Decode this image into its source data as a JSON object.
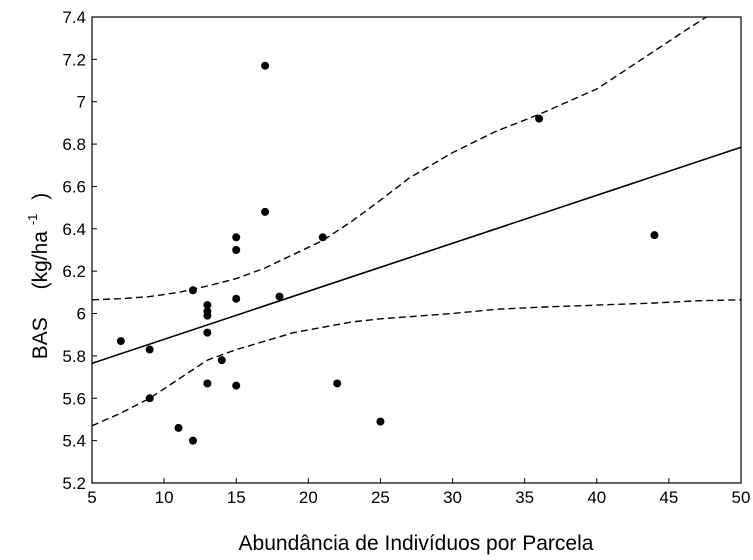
{
  "chart_data": {
    "type": "scatter",
    "title": "",
    "xlabel": "Abundância de Indivíduos por Parcela",
    "ylabel": {
      "main": "BAS",
      "unit_prefix": "(kg/ha",
      "unit_sup": "-1",
      "unit_suffix": ")"
    },
    "xlim": [
      5,
      50
    ],
    "ylim": [
      5.2,
      7.4
    ],
    "xticks": [
      "5",
      "10",
      "15",
      "20",
      "25",
      "30",
      "35",
      "40",
      "45",
      "50"
    ],
    "yticks": [
      "5.2",
      "5.4",
      "5.6",
      "5.8",
      "6",
      "6.2",
      "6.4",
      "6.6",
      "6.8",
      "7",
      "7.2",
      "7.4"
    ],
    "grid": false,
    "points": [
      {
        "x": 7,
        "y": 5.87
      },
      {
        "x": 9,
        "y": 5.83
      },
      {
        "x": 9,
        "y": 5.6
      },
      {
        "x": 11,
        "y": 5.46
      },
      {
        "x": 12,
        "y": 6.11
      },
      {
        "x": 12,
        "y": 5.4
      },
      {
        "x": 13,
        "y": 6.04
      },
      {
        "x": 13,
        "y": 6.01
      },
      {
        "x": 13,
        "y": 5.99
      },
      {
        "x": 13,
        "y": 5.91
      },
      {
        "x": 13,
        "y": 5.67
      },
      {
        "x": 14,
        "y": 5.78
      },
      {
        "x": 15,
        "y": 6.36
      },
      {
        "x": 15,
        "y": 6.3
      },
      {
        "x": 15,
        "y": 6.07
      },
      {
        "x": 15,
        "y": 5.66
      },
      {
        "x": 17,
        "y": 7.17
      },
      {
        "x": 17,
        "y": 6.48
      },
      {
        "x": 18,
        "y": 6.08
      },
      {
        "x": 21,
        "y": 6.36
      },
      {
        "x": 22,
        "y": 5.67
      },
      {
        "x": 25,
        "y": 5.49
      },
      {
        "x": 36,
        "y": 6.92
      },
      {
        "x": 44,
        "y": 6.37
      }
    ],
    "fit_line": {
      "x": [
        5,
        50
      ],
      "y": [
        5.765,
        6.785
      ]
    },
    "upper_band": {
      "x": [
        5,
        7,
        9,
        11,
        13,
        15,
        17,
        19,
        21,
        23,
        25,
        27,
        30,
        33,
        36,
        38,
        40,
        42,
        44,
        46,
        47.6
      ],
      "y": [
        6.065,
        6.07,
        6.08,
        6.1,
        6.13,
        6.165,
        6.215,
        6.28,
        6.345,
        6.435,
        6.535,
        6.64,
        6.76,
        6.86,
        6.94,
        7.0,
        7.06,
        7.15,
        7.24,
        7.33,
        7.4
      ]
    },
    "lower_band": {
      "x": [
        5,
        7,
        9,
        11,
        13,
        15,
        17,
        19,
        21,
        23,
        25,
        27,
        30,
        33,
        36,
        40,
        44,
        47,
        50
      ],
      "y": [
        5.47,
        5.53,
        5.6,
        5.69,
        5.78,
        5.83,
        5.87,
        5.91,
        5.935,
        5.96,
        5.975,
        5.985,
        6.0,
        6.02,
        6.03,
        6.04,
        6.05,
        6.06,
        6.065
      ]
    }
  }
}
